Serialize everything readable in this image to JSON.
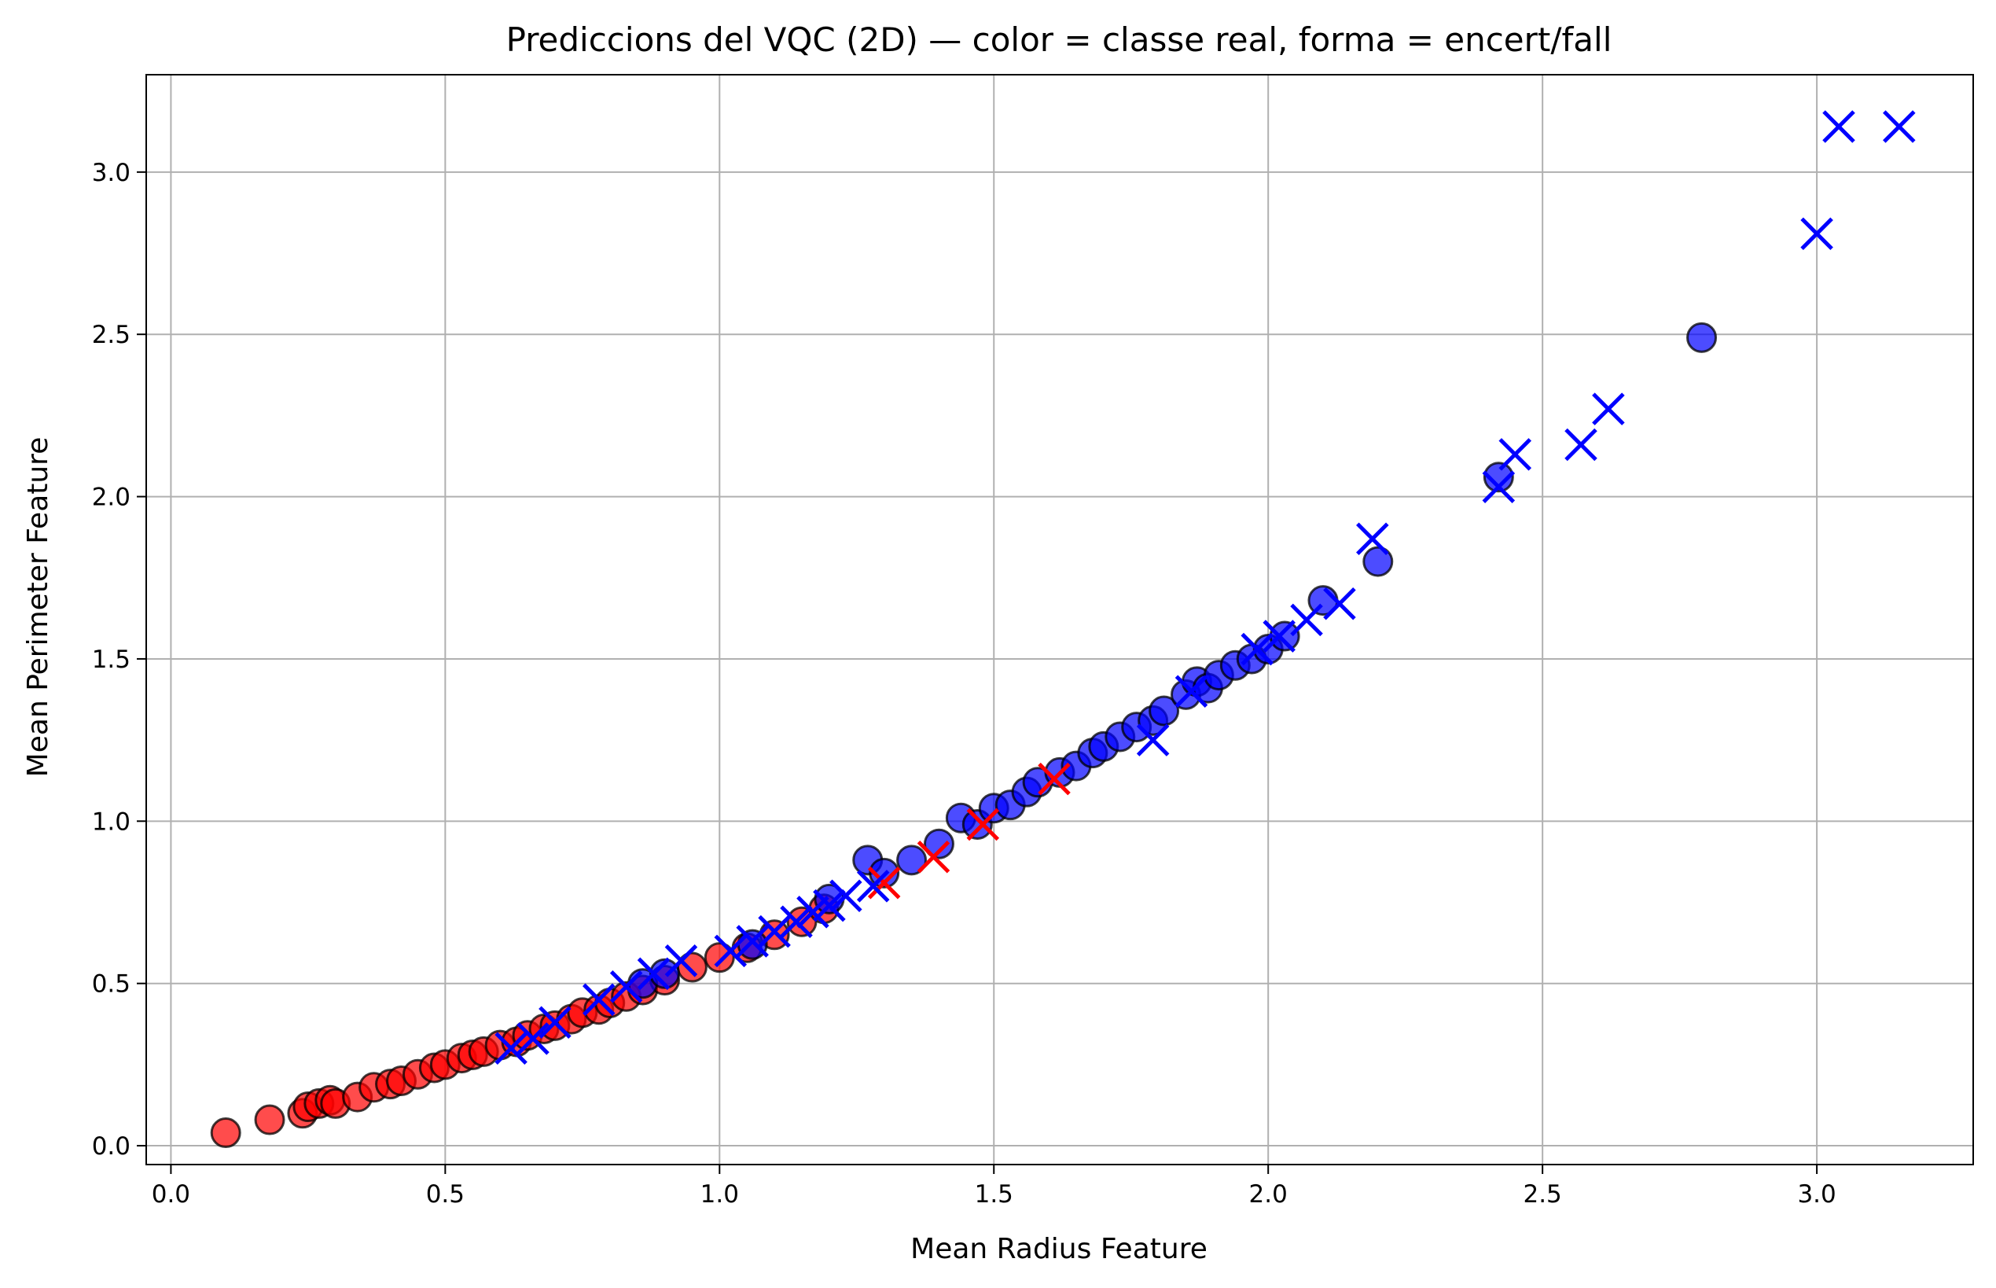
{
  "chart_data": {
    "type": "scatter",
    "title": "Prediccions del VQC (2D) — color = classe real, forma = encert/fall",
    "xlabel": "Mean Radius Feature",
    "ylabel": "Mean Perimeter Feature",
    "xlim": [
      -0.045,
      3.285
    ],
    "ylim": [
      -0.058,
      3.3
    ],
    "xticks": [
      0.0,
      0.5,
      1.0,
      1.5,
      2.0,
      2.5,
      3.0
    ],
    "xtick_labels": [
      "0.0",
      "0.5",
      "1.0",
      "1.5",
      "2.0",
      "2.5",
      "3.0"
    ],
    "yticks": [
      0.0,
      0.5,
      1.0,
      1.5,
      2.0,
      2.5,
      3.0
    ],
    "ytick_labels": [
      "0.0",
      "0.5",
      "1.0",
      "1.5",
      "2.0",
      "2.5",
      "3.0"
    ],
    "grid": true,
    "legend": false,
    "colors": {
      "red": "#ff0000",
      "blue": "#0000ff",
      "grid": "#b0b0b0"
    },
    "encoding": {
      "color": "true class",
      "shape": "circle = correct, x = incorrect"
    },
    "series": [
      {
        "color": "red",
        "marker": "circle",
        "x": [
          0.1,
          0.18,
          0.24,
          0.25,
          0.27,
          0.29,
          0.3,
          0.34,
          0.37,
          0.4,
          0.42,
          0.45,
          0.48,
          0.5,
          0.53,
          0.55,
          0.57,
          0.6,
          0.63,
          0.65,
          0.68,
          0.7,
          0.73,
          0.75,
          0.78,
          0.8,
          0.83,
          0.86,
          0.9,
          0.95,
          1.0,
          1.05,
          1.1,
          1.15,
          1.19
        ],
        "y": [
          0.04,
          0.08,
          0.1,
          0.12,
          0.13,
          0.14,
          0.13,
          0.15,
          0.18,
          0.19,
          0.2,
          0.22,
          0.24,
          0.25,
          0.27,
          0.28,
          0.29,
          0.31,
          0.32,
          0.34,
          0.36,
          0.37,
          0.39,
          0.41,
          0.42,
          0.44,
          0.46,
          0.48,
          0.51,
          0.55,
          0.58,
          0.61,
          0.65,
          0.69,
          0.73
        ]
      },
      {
        "color": "red",
        "marker": "x",
        "x": [
          1.3,
          1.39,
          1.48,
          1.61
        ],
        "y": [
          0.81,
          0.89,
          0.99,
          1.13
        ]
      },
      {
        "color": "blue",
        "marker": "circle",
        "x": [
          0.86,
          0.9,
          1.06,
          1.2,
          1.27,
          1.3,
          1.35,
          1.4,
          1.44,
          1.47,
          1.5,
          1.53,
          1.56,
          1.58,
          1.62,
          1.65,
          1.68,
          1.7,
          1.73,
          1.76,
          1.79,
          1.81,
          1.85,
          1.87,
          1.89,
          1.91,
          1.94,
          1.97,
          2.0,
          2.03,
          2.1,
          2.2,
          2.42,
          2.79
        ],
        "y": [
          0.5,
          0.53,
          0.62,
          0.76,
          0.88,
          0.84,
          0.88,
          0.93,
          1.01,
          0.99,
          1.04,
          1.05,
          1.09,
          1.12,
          1.15,
          1.17,
          1.21,
          1.23,
          1.26,
          1.29,
          1.31,
          1.34,
          1.39,
          1.43,
          1.41,
          1.45,
          1.48,
          1.5,
          1.53,
          1.57,
          1.68,
          1.8,
          2.06,
          2.49
        ]
      },
      {
        "color": "blue",
        "marker": "x",
        "x": [
          0.62,
          0.66,
          0.7,
          0.78,
          0.83,
          0.88,
          0.93,
          1.02,
          1.06,
          1.1,
          1.14,
          1.17,
          1.2,
          1.23,
          1.28,
          1.79,
          1.86,
          1.98,
          2.02,
          2.07,
          2.13,
          2.19,
          2.42,
          2.45,
          2.57,
          2.62,
          3.0,
          3.04,
          3.15
        ],
        "y": [
          0.3,
          0.33,
          0.38,
          0.45,
          0.49,
          0.53,
          0.57,
          0.6,
          0.63,
          0.66,
          0.69,
          0.72,
          0.74,
          0.77,
          0.8,
          1.25,
          1.4,
          1.53,
          1.57,
          1.62,
          1.67,
          1.87,
          2.03,
          2.13,
          2.16,
          2.27,
          2.81,
          3.14,
          3.14
        ]
      }
    ]
  }
}
